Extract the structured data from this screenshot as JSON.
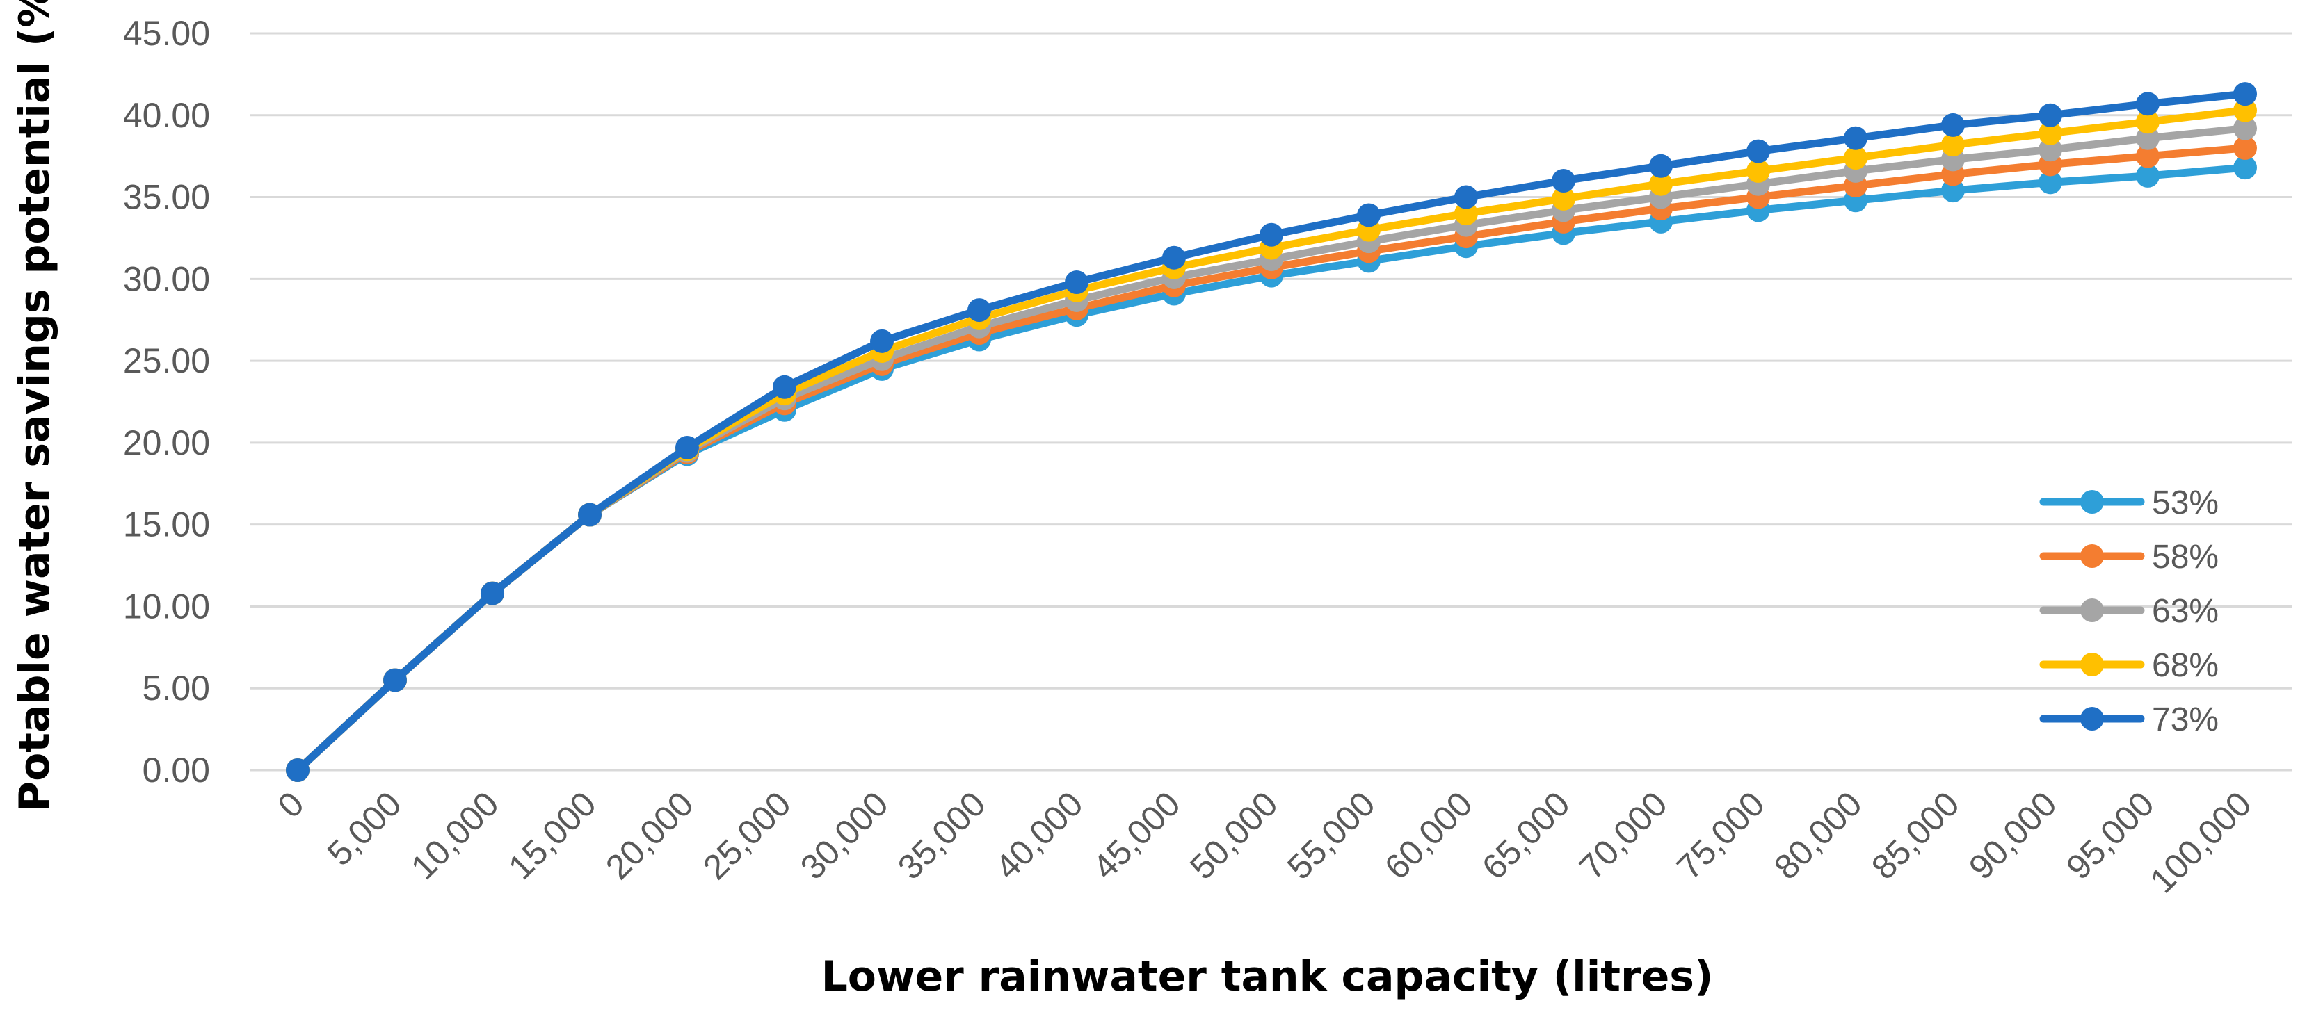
{
  "chart_data": {
    "type": "line",
    "title": "",
    "xlabel": "Lower rainwater tank capacity (litres)",
    "ylabel": "Potable water savings potential (%)",
    "ylim": [
      0,
      45
    ],
    "y_ticks": [
      "0.00",
      "5.00",
      "10.00",
      "15.00",
      "20.00",
      "25.00",
      "30.00",
      "35.00",
      "40.00",
      "45.00"
    ],
    "categories": [
      "0",
      "5,000",
      "10,000",
      "15,000",
      "20,000",
      "25,000",
      "30,000",
      "35,000",
      "40,000",
      "45,000",
      "50,000",
      "55,000",
      "60,000",
      "65,000",
      "70,000",
      "75,000",
      "80,000",
      "85,000",
      "90,000",
      "95,000",
      "100,000"
    ],
    "grid": true,
    "legend_position": "right",
    "series": [
      {
        "name": "53%",
        "color": "#2E9FD8",
        "values": [
          0.0,
          5.5,
          10.8,
          15.6,
          19.3,
          22.0,
          24.5,
          26.3,
          27.8,
          29.1,
          30.2,
          31.1,
          32.0,
          32.8,
          33.5,
          34.2,
          34.8,
          35.4,
          35.9,
          36.3,
          36.8
        ]
      },
      {
        "name": "58%",
        "color": "#F47D30",
        "values": [
          0.0,
          5.5,
          10.8,
          15.6,
          19.4,
          22.4,
          24.8,
          26.7,
          28.2,
          29.6,
          30.7,
          31.7,
          32.6,
          33.5,
          34.3,
          35.0,
          35.7,
          36.4,
          37.0,
          37.5,
          38.0
        ]
      },
      {
        "name": "63%",
        "color": "#A5A5A5",
        "values": [
          0.0,
          5.5,
          10.8,
          15.6,
          19.5,
          22.7,
          25.1,
          27.1,
          28.7,
          30.1,
          31.2,
          32.3,
          33.3,
          34.2,
          35.0,
          35.8,
          36.6,
          37.3,
          37.9,
          38.6,
          39.2
        ]
      },
      {
        "name": "68%",
        "color": "#FFC000",
        "values": [
          0.0,
          5.5,
          10.8,
          15.6,
          19.6,
          23.0,
          25.6,
          27.6,
          29.3,
          30.7,
          31.9,
          33.0,
          34.0,
          34.9,
          35.8,
          36.6,
          37.4,
          38.2,
          38.9,
          39.6,
          40.3
        ]
      },
      {
        "name": "73%",
        "color": "#1F6FC5",
        "values": [
          0.0,
          5.5,
          10.8,
          15.6,
          19.7,
          23.4,
          26.2,
          28.1,
          29.8,
          31.3,
          32.7,
          33.9,
          35.0,
          36.0,
          36.9,
          37.8,
          38.6,
          39.4,
          40.0,
          40.7,
          41.3
        ]
      }
    ]
  }
}
